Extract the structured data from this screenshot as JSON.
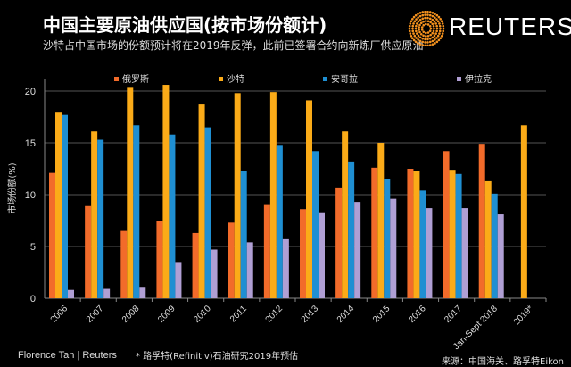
{
  "header": {
    "title": "中国主要原油供应国(按市场份额计)",
    "subtitle": "沙特占中国市场的份额预计将在2019年反弹，此前已签署合约向新炼厂供应原油",
    "brand": "REUTERS"
  },
  "footer": {
    "credit": "Florence Tan | Reuters",
    "footnote": "* 路孚特(Refinitiv)石油研究2019年预估",
    "source": "来源：中国海关、路孚特Eikon"
  },
  "chart_data": {
    "type": "bar",
    "title": "中国主要原油供应国(按市场份额计)",
    "ylabel": "市场份额(%)",
    "xlabel": "",
    "ylim": [
      0,
      21
    ],
    "yticks": [
      0,
      5,
      10,
      15,
      20
    ],
    "grid": true,
    "legend_placement": "top",
    "categories": [
      "2006",
      "2007",
      "2008",
      "2009",
      "2010",
      "2011",
      "2012",
      "2013",
      "2014",
      "2015",
      "2016",
      "2017",
      "Jan-Sept 2018",
      "2019*"
    ],
    "series": [
      {
        "name": "俄罗斯",
        "color": "#f26b2a",
        "values": [
          12.1,
          8.9,
          6.5,
          7.5,
          6.3,
          7.3,
          9.0,
          8.6,
          10.7,
          12.6,
          12.5,
          14.2,
          14.9,
          null
        ]
      },
      {
        "name": "沙特",
        "color": "#fbab18",
        "values": [
          18.0,
          16.1,
          20.4,
          20.6,
          18.7,
          19.8,
          19.9,
          19.1,
          16.1,
          15.0,
          12.3,
          12.4,
          11.3,
          16.7
        ]
      },
      {
        "name": "安哥拉",
        "color": "#1f8fd2",
        "values": [
          17.7,
          15.3,
          16.7,
          15.8,
          16.5,
          12.3,
          14.8,
          14.2,
          13.2,
          11.5,
          10.4,
          12.0,
          10.1,
          null
        ]
      },
      {
        "name": "伊拉克",
        "color": "#b09fd4",
        "values": [
          0.8,
          0.9,
          1.1,
          3.5,
          4.7,
          5.4,
          5.7,
          8.3,
          9.3,
          9.6,
          8.7,
          8.7,
          8.1,
          null
        ]
      }
    ]
  }
}
